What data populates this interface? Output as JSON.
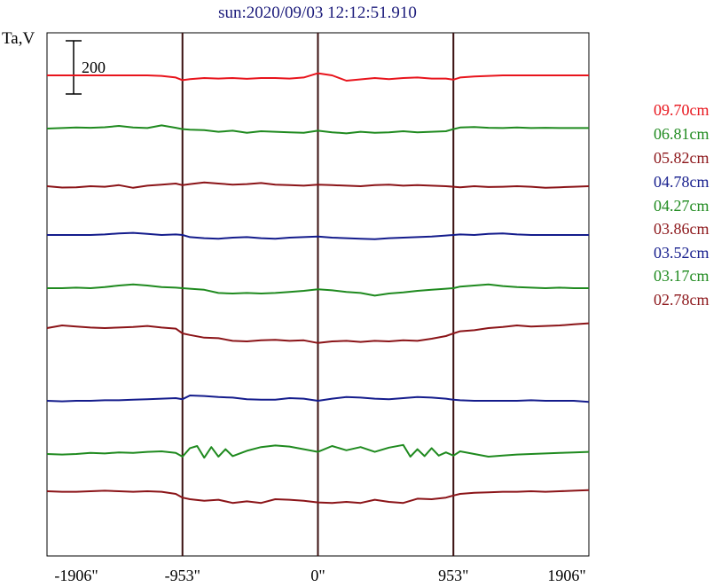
{
  "chart_data": {
    "type": "line",
    "title": "sun:2020/09/03 12:12:51.910",
    "ylabel": "Ta,V",
    "scale_bar_label": "200",
    "scale_bar_value": 200,
    "xlim": [
      -1906,
      1906
    ],
    "x_ticks": [
      -1906,
      -953,
      0,
      953,
      1906
    ],
    "x_tick_labels": [
      "-1906\"",
      "-953\"",
      "0\"",
      "953\"",
      "1906\""
    ],
    "vertical_lines_x": [
      -953,
      0,
      953
    ],
    "grid": false,
    "legend_position": "right",
    "series": [
      {
        "name": "09.70cm",
        "color": "#e8141c",
        "offset": 0,
        "x": [
          -1906,
          -1800,
          -1700,
          -1600,
          -1500,
          -1400,
          -1300,
          -1200,
          -1100,
          -1000,
          -953,
          -900,
          -800,
          -700,
          -600,
          -500,
          -400,
          -300,
          -200,
          -100,
          0,
          100,
          200,
          300,
          400,
          500,
          600,
          700,
          800,
          900,
          953,
          1000,
          1100,
          1200,
          1300,
          1400,
          1500,
          1600,
          1700,
          1800,
          1906
        ],
        "y": [
          0,
          0,
          0,
          0,
          0,
          0,
          0,
          0,
          -2,
          -8,
          -18,
          -14,
          -10,
          -12,
          -10,
          -13,
          -10,
          -10,
          -12,
          -8,
          8,
          0,
          -20,
          -15,
          -10,
          -14,
          -10,
          -8,
          -12,
          -12,
          -16,
          -8,
          -4,
          -2,
          0,
          0,
          0,
          0,
          0,
          0,
          0
        ]
      },
      {
        "name": "06.81cm",
        "color": "#1f8a1f",
        "offset": 0,
        "x": [
          -1906,
          -1800,
          -1700,
          -1600,
          -1500,
          -1400,
          -1300,
          -1200,
          -1100,
          -1000,
          -953,
          -900,
          -800,
          -700,
          -600,
          -500,
          -400,
          -300,
          -200,
          -100,
          0,
          100,
          200,
          300,
          400,
          500,
          600,
          700,
          800,
          900,
          953,
          1000,
          1100,
          1200,
          1300,
          1400,
          1500,
          1600,
          1700,
          1800,
          1906
        ],
        "y": [
          0,
          2,
          4,
          3,
          5,
          10,
          4,
          2,
          12,
          3,
          -2,
          -4,
          -6,
          -12,
          -8,
          -16,
          -10,
          -12,
          -14,
          -16,
          -8,
          -14,
          -18,
          -12,
          -16,
          -14,
          -10,
          -14,
          -12,
          -10,
          -2,
          4,
          6,
          3,
          2,
          4,
          2,
          3,
          2,
          2,
          2
        ]
      },
      {
        "name": "05.82cm",
        "color": "#8b1418",
        "offset": 0,
        "x": [
          -1906,
          -1800,
          -1700,
          -1600,
          -1500,
          -1400,
          -1300,
          -1200,
          -1100,
          -1000,
          -953,
          -900,
          -800,
          -700,
          -600,
          -500,
          -400,
          -300,
          -200,
          -100,
          0,
          100,
          200,
          300,
          400,
          500,
          600,
          700,
          800,
          900,
          953,
          1000,
          1100,
          1200,
          1300,
          1400,
          1500,
          1600,
          1700,
          1800,
          1906
        ],
        "y": [
          0,
          -5,
          -4,
          0,
          -2,
          4,
          -6,
          2,
          6,
          10,
          4,
          8,
          14,
          10,
          6,
          8,
          12,
          6,
          4,
          2,
          6,
          4,
          2,
          0,
          4,
          6,
          2,
          4,
          2,
          0,
          -2,
          -4,
          0,
          -3,
          -2,
          0,
          -2,
          -6,
          -4,
          -2,
          0
        ]
      },
      {
        "name": "04.78cm",
        "color": "#141c8c",
        "offset": 0,
        "x": [
          -1906,
          -1800,
          -1700,
          -1600,
          -1500,
          -1400,
          -1300,
          -1200,
          -1100,
          -1000,
          -953,
          -900,
          -800,
          -700,
          -600,
          -500,
          -400,
          -300,
          -200,
          -100,
          0,
          100,
          200,
          300,
          400,
          500,
          600,
          700,
          800,
          900,
          953,
          1000,
          1100,
          1200,
          1300,
          1400,
          1500,
          1600,
          1700,
          1800,
          1906
        ],
        "y": [
          0,
          0,
          0,
          0,
          2,
          6,
          8,
          4,
          0,
          2,
          0,
          -8,
          -12,
          -14,
          -10,
          -8,
          -12,
          -14,
          -10,
          -8,
          -6,
          -10,
          -12,
          -14,
          -16,
          -12,
          -10,
          -8,
          -6,
          -2,
          0,
          2,
          0,
          4,
          6,
          2,
          0,
          0,
          0,
          0,
          0
        ]
      },
      {
        "name": "04.27cm",
        "color": "#1f8a1f",
        "offset": 0,
        "x": [
          -1906,
          -1800,
          -1700,
          -1600,
          -1500,
          -1400,
          -1300,
          -1200,
          -1100,
          -1000,
          -953,
          -900,
          -800,
          -700,
          -600,
          -500,
          -400,
          -300,
          -200,
          -100,
          0,
          100,
          200,
          300,
          400,
          500,
          600,
          700,
          800,
          900,
          953,
          1000,
          1100,
          1200,
          1300,
          1400,
          1500,
          1600,
          1700,
          1800,
          1906
        ],
        "y": [
          0,
          0,
          2,
          0,
          4,
          10,
          14,
          10,
          4,
          2,
          0,
          -2,
          -6,
          -18,
          -20,
          -18,
          -20,
          -18,
          -14,
          -10,
          -4,
          -8,
          -14,
          -18,
          -28,
          -20,
          -16,
          -10,
          -6,
          -2,
          0,
          6,
          10,
          14,
          8,
          4,
          2,
          0,
          2,
          0,
          0
        ]
      },
      {
        "name": "03.86cm",
        "color": "#8b1418",
        "offset": 0,
        "x": [
          -1906,
          -1800,
          -1700,
          -1600,
          -1500,
          -1400,
          -1300,
          -1200,
          -1100,
          -1000,
          -953,
          -900,
          -800,
          -700,
          -600,
          -500,
          -400,
          -300,
          -200,
          -100,
          0,
          100,
          200,
          300,
          400,
          500,
          600,
          700,
          800,
          900,
          953,
          1000,
          1100,
          1200,
          1300,
          1400,
          1500,
          1600,
          1700,
          1800,
          1906
        ],
        "y": [
          0,
          10,
          6,
          2,
          0,
          2,
          4,
          8,
          2,
          -2,
          -20,
          -26,
          -36,
          -38,
          -48,
          -50,
          -46,
          -44,
          -48,
          -46,
          -56,
          -50,
          -48,
          -52,
          -48,
          -50,
          -46,
          -48,
          -40,
          -30,
          -20,
          -12,
          -8,
          0,
          4,
          10,
          6,
          8,
          10,
          14,
          18
        ]
      },
      {
        "name": "03.52cm",
        "color": "#141c8c",
        "offset": 0,
        "x": [
          -1906,
          -1800,
          -1700,
          -1600,
          -1500,
          -1400,
          -1300,
          -1200,
          -1100,
          -1000,
          -953,
          -900,
          -800,
          -700,
          -600,
          -500,
          -400,
          -300,
          -200,
          -100,
          0,
          100,
          200,
          300,
          400,
          500,
          600,
          700,
          800,
          900,
          953,
          1000,
          1100,
          1200,
          1300,
          1400,
          1500,
          1600,
          1700,
          1800,
          1906
        ],
        "y": [
          0,
          -2,
          0,
          0,
          2,
          2,
          4,
          6,
          8,
          10,
          6,
          20,
          18,
          14,
          12,
          6,
          4,
          4,
          10,
          8,
          0,
          8,
          14,
          12,
          8,
          6,
          10,
          14,
          12,
          8,
          4,
          2,
          0,
          0,
          0,
          0,
          2,
          0,
          0,
          0,
          -4
        ]
      },
      {
        "name": "03.17cm",
        "color": "#1f8a1f",
        "offset": 0,
        "x": [
          -1906,
          -1800,
          -1700,
          -1600,
          -1500,
          -1400,
          -1300,
          -1200,
          -1100,
          -1000,
          -953,
          -900,
          -850,
          -800,
          -750,
          -700,
          -650,
          -600,
          -500,
          -400,
          -300,
          -200,
          -100,
          0,
          100,
          200,
          300,
          400,
          500,
          600,
          650,
          700,
          750,
          800,
          850,
          900,
          953,
          1000,
          1100,
          1200,
          1300,
          1400,
          1500,
          1600,
          1700,
          1800,
          1906
        ],
        "y": [
          0,
          -2,
          0,
          4,
          2,
          6,
          4,
          8,
          10,
          4,
          -10,
          22,
          30,
          -14,
          26,
          -10,
          18,
          -8,
          12,
          26,
          32,
          28,
          18,
          8,
          30,
          14,
          26,
          8,
          24,
          34,
          -10,
          18,
          -8,
          22,
          -6,
          6,
          -6,
          10,
          0,
          -10,
          -6,
          -2,
          0,
          2,
          4,
          6,
          8
        ]
      },
      {
        "name": "02.78cm",
        "color": "#8b1418",
        "offset": 0,
        "x": [
          -1906,
          -1800,
          -1700,
          -1600,
          -1500,
          -1400,
          -1300,
          -1200,
          -1100,
          -1000,
          -953,
          -900,
          -800,
          -700,
          -600,
          -500,
          -400,
          -300,
          -200,
          -100,
          0,
          100,
          200,
          300,
          400,
          500,
          600,
          700,
          800,
          900,
          953,
          1000,
          1100,
          1200,
          1300,
          1400,
          1500,
          1600,
          1700,
          1800,
          1906
        ],
        "y": [
          0,
          -2,
          -2,
          0,
          2,
          0,
          -2,
          0,
          -2,
          -10,
          -24,
          -30,
          -36,
          -32,
          -44,
          -38,
          -44,
          -30,
          -32,
          -36,
          -42,
          -44,
          -40,
          -44,
          -32,
          -40,
          -44,
          -28,
          -30,
          -24,
          -16,
          -10,
          -6,
          -4,
          -2,
          -2,
          0,
          -2,
          0,
          2,
          4
        ]
      }
    ]
  }
}
